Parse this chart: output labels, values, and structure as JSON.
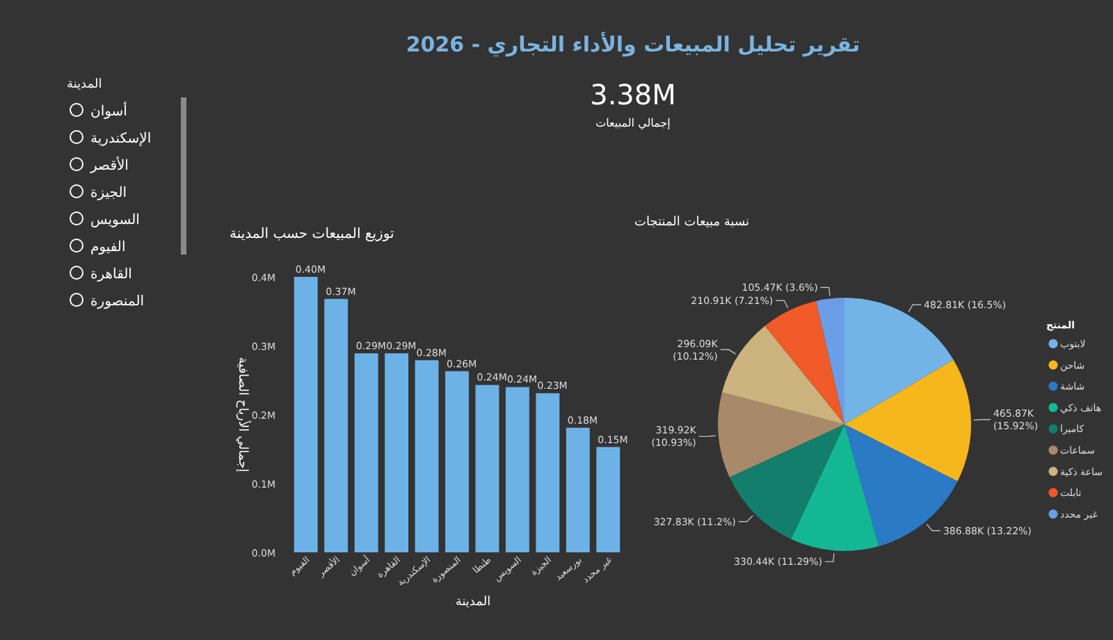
{
  "chart_data": [
    {
      "type": "other",
      "title": "تقرير تحليل المبيعات والأداء التجاري - 2026"
    },
    {
      "type": "other",
      "title": "المدينة",
      "annotations": [
        "أسوان",
        "الإسكندرية",
        "الأقصر",
        "الجيزة",
        "السويس",
        "الفيوم",
        "القاهرة",
        "المنصورة"
      ]
    },
    {
      "type": "other",
      "annotations": [
        "3.38M",
        "إجمالي المبيعات"
      ]
    },
    {
      "type": "bar",
      "title": "توزيع المبيعات حسب المدينة",
      "xlabel": "المدينة",
      "ylabel": "إجمالي الأرباح الصافية",
      "categories": [
        "الفيوم",
        "الأقصر",
        "أسوان",
        "القاهرة",
        "الإسكندرية",
        "المنصورة",
        "طنطا",
        "السويس",
        "الجيزة",
        "بورسعيد",
        "غير محدد"
      ],
      "values": [
        0.4,
        0.368,
        0.289,
        0.289,
        0.279,
        0.263,
        0.243,
        0.24,
        0.231,
        0.181,
        0.153
      ],
      "value_labels": [
        "0.40M",
        "0.37M",
        "0.29M",
        "0.29M",
        "0.28M",
        "0.26M",
        "0.24M",
        "0.24M",
        "0.23M",
        "0.18M",
        "0.15M"
      ],
      "color": "#6cb2e6",
      "ylim": [
        0,
        0.4
      ],
      "yticks": [
        {
          "value": 0,
          "label": "0.0M"
        },
        {
          "value": 0.1,
          "label": "0.1M"
        },
        {
          "value": 0.2,
          "label": "0.2M"
        },
        {
          "value": 0.3,
          "label": "0.3M"
        },
        {
          "value": 0.4,
          "label": "0.4M"
        }
      ]
    },
    {
      "type": "pie",
      "title": "نسبة مبيعات المنتجات",
      "legend_title": "المنتج",
      "legend": "right",
      "categories": [
        "لابتوب",
        "شاحن",
        "شاشة",
        "هاتف ذكي",
        "كاميرا",
        "سماعات",
        "ساعة ذكية",
        "تابلت",
        "غير محدد"
      ],
      "values": [
        482810,
        465870,
        386880,
        330440,
        327830,
        319920,
        296090,
        210910,
        105470
      ],
      "value_labels": [
        "482.81K (16.5%)",
        "465.87K (15.92%)",
        "386.88K (13.22%)",
        "330.44K (11.29%)",
        "327.83K (11.2%)",
        "319.92K (10.93%)",
        "296.09K (10.12%)",
        "210.91K (7.21%)",
        "105.47K (3.6%)"
      ],
      "colors": [
        "#72b4e6",
        "#f6b71c",
        "#2a7ac6",
        "#14b794",
        "#127e6b",
        "#a88a6a",
        "#ccb37e",
        "#ef5a28",
        "#6b9ee6"
      ]
    }
  ]
}
